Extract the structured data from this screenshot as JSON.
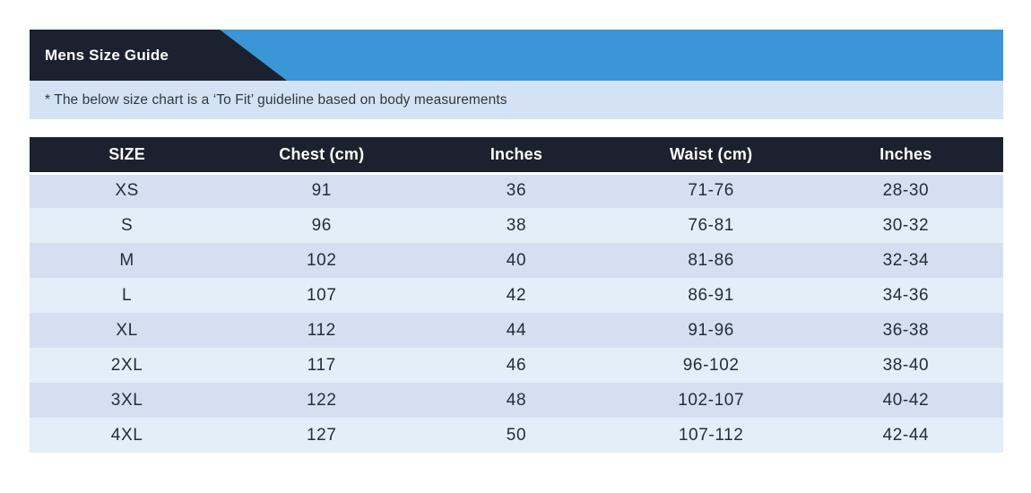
{
  "banner": {
    "title": "Mens Size Guide"
  },
  "note": "* The below size chart is a ‘To Fit’ guideline based on body measurements",
  "table": {
    "columns": [
      "SIZE",
      "Chest (cm)",
      "Inches",
      "Waist (cm)",
      "Inches"
    ],
    "rows": [
      [
        "XS",
        "91",
        "36",
        "71-76",
        "28-30"
      ],
      [
        "S",
        "96",
        "38",
        "76-81",
        "30-32"
      ],
      [
        "M",
        "102",
        "40",
        "81-86",
        "32-34"
      ],
      [
        "L",
        "107",
        "42",
        "86-91",
        "34-36"
      ],
      [
        "XL",
        "112",
        "44",
        "91-96",
        "36-38"
      ],
      [
        "2XL",
        "117",
        "46",
        "96-102",
        "38-40"
      ],
      [
        "3XL",
        "122",
        "48",
        "102-107",
        "40-42"
      ],
      [
        "4XL",
        "127",
        "50",
        "107-112",
        "42-44"
      ]
    ]
  },
  "colors": {
    "accent-blue": "#3a96d6",
    "dark-navy": "#1b212e",
    "note-blue": "#d3e2f4",
    "row-dark": "#d4e0f2",
    "row-light": "#e4eef9"
  }
}
